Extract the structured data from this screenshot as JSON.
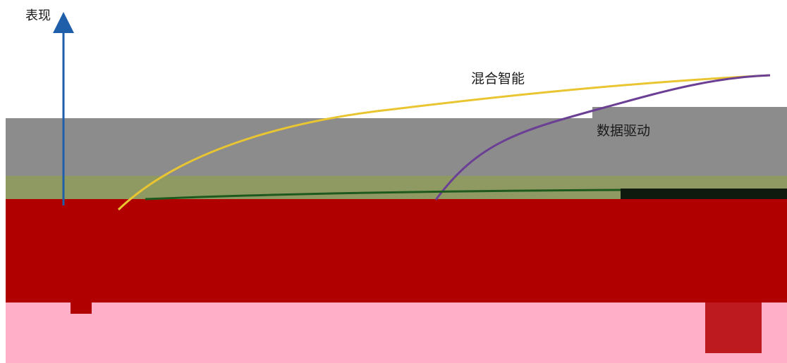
{
  "axis": {
    "y_label": "表现"
  },
  "curves": [
    {
      "id": "hybrid",
      "label": "混合智能",
      "color": "#e8c531"
    },
    {
      "id": "data",
      "label": "数据驱动",
      "color": "#6a3f94"
    },
    {
      "id": "green",
      "label": "",
      "color": "#1e5a1e"
    }
  ],
  "colors": {
    "axis": "#1f5ea8",
    "band_gray": "#8c8c8c",
    "band_olive": "#8f9a62",
    "band_red": "#b00000",
    "band_pink": "#ffb0c8",
    "band_black": "#0d1a0d"
  }
}
